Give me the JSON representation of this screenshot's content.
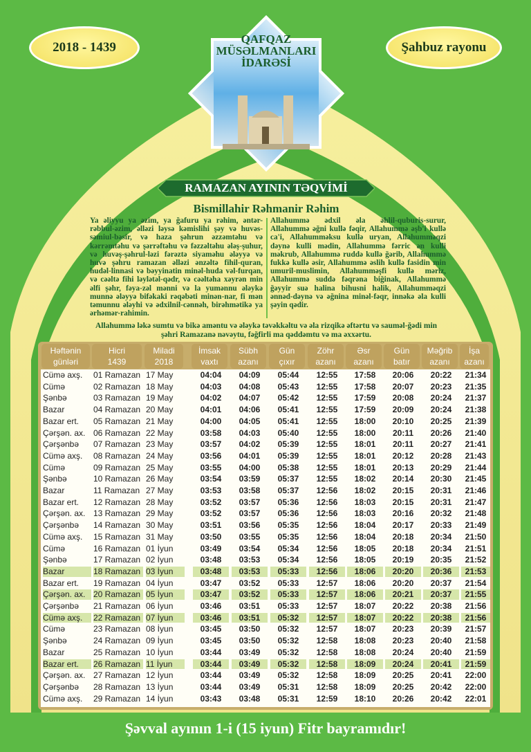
{
  "header": {
    "year_badge": "2018 - 1439",
    "region_badge": "Şahbuz rayonu",
    "logo_lines": [
      "QAFQAZ",
      "MÜSƏLMANLARI",
      "İDARƏSİ"
    ],
    "title": "RAMAZAN AYININ TƏQVİMİ",
    "bismillah": "Bismillahir Rəhmanir Rəhim"
  },
  "prayers": {
    "left": "Ya əliyyu ya əzim, ya ğafuru ya rəhim, əntər-rəbbul-əzim, əlləzi ləysə kəmislihi şəy və huvəs-səmiul-bəsir, və haza şəhrun əzzəmtəhu və kərrəmtəhu və şərrəftəhu və fəzzəltəhu ələş-şuhur, və huvəş-şəhrul-ləzi fərəztə siyaməhu ələyyə və huvə şəhru ramazan əlləzi ənzəltə fihil-quran, hudəl-linnasi və bəyyinatin minəl-huda vəl-furqan, və cəəltə fihi ləylətəl-qədr, və cəəltəha xəyrən min əlfi şəhr, fəya-zəl mənni və la yumənnu ələykə munnə ələyyə bifəkaki rəqəbəti minən-nar, fi mən təmunnu ələyhi və ədxilnil-cənnəh, birəhmətikə ya ərhəmər-rahimin.",
    "right": "Allahummə ədxil əla əhlil-quburis-surur, Allahummə əğni kullə fəqir, Allahummə əşb'i kullə ca'i, Allahumməksu kullə uryan, Allahumməqzi dəynə kulli mədin, Allahummə fərric ən kulli məkrub, Allahummə ruddə kullə ğərib, Allahummə fukkə kullə əsir, Allahummə əslih kullə fasidin min umuril-muslimin, Allahumməşfi kullə məriz, Allahummə suddə fəqrəna biğinak, Allahummə ğəyyir suə halina bihusni halik, Allahumməqzi ənnəd-dəynə və əğnina minəl-fəqr, innəkə əla kulli şəyin qədir.",
    "bottom": "Allahummə ləkə sumtu və bikə aməntu və ələykə təvəkkəltu və əla rizqikə əftərtu və sauməl-ğədi min şəhri Ramazanə nəvəytu, fəğfirli ma qəddəmtu və ma əxxərtu."
  },
  "table": {
    "headers": [
      [
        "Həftənin",
        "günləri"
      ],
      [
        "Hicri",
        "1439"
      ],
      [
        "Miladi",
        "2018"
      ],
      [
        "İmsak",
        "vaxtı"
      ],
      [
        "Sübh",
        "azanı"
      ],
      [
        "Gün",
        "çıxır"
      ],
      [
        "Zöhr",
        "azanı"
      ],
      [
        "Əsr",
        "azanı"
      ],
      [
        "Gün",
        "batır"
      ],
      [
        "Məğrib",
        "azanı"
      ],
      [
        "İşa",
        "azanı"
      ]
    ],
    "highlight_color": "#d6e6aa",
    "rows": [
      {
        "cells": [
          "Cümə axş.",
          "01 Ramazan",
          "17 May",
          "04:04",
          "04:09",
          "05:44",
          "12:55",
          "17:58",
          "20:06",
          "20:22",
          "21:34"
        ]
      },
      {
        "cells": [
          "Cümə",
          "02 Ramazan",
          "18 May",
          "04:03",
          "04:08",
          "05:43",
          "12:55",
          "17:58",
          "20:07",
          "20:23",
          "21:35"
        ]
      },
      {
        "cells": [
          "Şənbə",
          "03 Ramazan",
          "19 May",
          "04:02",
          "04:07",
          "05:42",
          "12:55",
          "17:59",
          "20:08",
          "20:24",
          "21:37"
        ]
      },
      {
        "cells": [
          "Bazar",
          "04 Ramazan",
          "20 May",
          "04:01",
          "04:06",
          "05:41",
          "12:55",
          "17:59",
          "20:09",
          "20:24",
          "21:38"
        ]
      },
      {
        "cells": [
          "Bazar ert.",
          "05 Ramazan",
          "21 May",
          "04:00",
          "04:05",
          "05:41",
          "12:55",
          "18:00",
          "20:10",
          "20:25",
          "21:39"
        ]
      },
      {
        "cells": [
          "Çərşən. ax.",
          "06 Ramazan",
          "22 May",
          "03:58",
          "04:03",
          "05:40",
          "12:55",
          "18:00",
          "20:11",
          "20:26",
          "21:40"
        ]
      },
      {
        "cells": [
          "Çərşənbə",
          "07 Ramazan",
          "23 May",
          "03:57",
          "04:02",
          "05:39",
          "12:55",
          "18:01",
          "20:11",
          "20:27",
          "21:41"
        ]
      },
      {
        "cells": [
          "Cümə axş.",
          "08 Ramazan",
          "24 May",
          "03:56",
          "04:01",
          "05:39",
          "12:55",
          "18:01",
          "20:12",
          "20:28",
          "21:43"
        ]
      },
      {
        "cells": [
          "Cümə",
          "09 Ramazan",
          "25 May",
          "03:55",
          "04:00",
          "05:38",
          "12:55",
          "18:01",
          "20:13",
          "20:29",
          "21:44"
        ]
      },
      {
        "cells": [
          "Şənbə",
          "10 Ramazan",
          "26 May",
          "03:54",
          "03:59",
          "05:37",
          "12:55",
          "18:02",
          "20:14",
          "20:30",
          "21:45"
        ]
      },
      {
        "cells": [
          "Bazar",
          "11 Ramazan",
          "27 May",
          "03:53",
          "03:58",
          "05:37",
          "12:56",
          "18:02",
          "20:15",
          "20:31",
          "21:46"
        ]
      },
      {
        "cells": [
          "Bazar ert.",
          "12 Ramazan",
          "28 May",
          "03:52",
          "03:57",
          "05:36",
          "12:56",
          "18:03",
          "20:15",
          "20:31",
          "21:47"
        ]
      },
      {
        "cells": [
          "Çərşən. ax.",
          "13 Ramazan",
          "29 May",
          "03:52",
          "03:57",
          "05:36",
          "12:56",
          "18:03",
          "20:16",
          "20:32",
          "21:48"
        ]
      },
      {
        "cells": [
          "Çərşənbə",
          "14 Ramazan",
          "30 May",
          "03:51",
          "03:56",
          "05:35",
          "12:56",
          "18:04",
          "20:17",
          "20:33",
          "21:49"
        ]
      },
      {
        "cells": [
          "Cümə axş.",
          "15 Ramazan",
          "31 May",
          "03:50",
          "03:55",
          "05:35",
          "12:56",
          "18:04",
          "20:18",
          "20:34",
          "21:50"
        ]
      },
      {
        "cells": [
          "Cümə",
          "16 Ramazan",
          "01 İyun",
          "03:49",
          "03:54",
          "05:34",
          "12:56",
          "18:05",
          "20:18",
          "20:34",
          "21:51"
        ]
      },
      {
        "cells": [
          "Şənbə",
          "17 Ramazan",
          "02 İyun",
          "03:48",
          "03:53",
          "05:34",
          "12:56",
          "18:05",
          "20:19",
          "20:35",
          "21:52"
        ]
      },
      {
        "cells": [
          "Bazar",
          "18 Ramazan",
          "03 İyun",
          "03:48",
          "03:53",
          "05:33",
          "12:56",
          "18:06",
          "20:20",
          "20:36",
          "21:53"
        ],
        "highlight": true
      },
      {
        "cells": [
          "Bazar ert.",
          "19 Ramazan",
          "04 İyun",
          "03:47",
          "03:52",
          "05:33",
          "12:57",
          "18:06",
          "20:20",
          "20:37",
          "21:54"
        ]
      },
      {
        "cells": [
          "Çərşən. ax.",
          "20 Ramazan",
          "05 İyun",
          "03:47",
          "03:52",
          "05:33",
          "12:57",
          "18:06",
          "20:21",
          "20:37",
          "21:55"
        ],
        "highlight": true
      },
      {
        "cells": [
          "Çərşənbə",
          "21 Ramazan",
          "06 İyun",
          "03:46",
          "03:51",
          "05:33",
          "12:57",
          "18:07",
          "20:22",
          "20:38",
          "21:56"
        ]
      },
      {
        "cells": [
          "Cümə axş.",
          "22 Ramazan",
          "07 İyun",
          "03:46",
          "03:51",
          "05:32",
          "12:57",
          "18:07",
          "20:22",
          "20:38",
          "21:56"
        ],
        "highlight": true
      },
      {
        "cells": [
          "Cümə",
          "23 Ramazan",
          "08 İyun",
          "03:45",
          "03:50",
          "05:32",
          "12:57",
          "18:07",
          "20:23",
          "20:39",
          "21:57"
        ]
      },
      {
        "cells": [
          "Şənbə",
          "24 Ramazan",
          "09 İyun",
          "03:45",
          "03:50",
          "05:32",
          "12:58",
          "18:08",
          "20:23",
          "20:40",
          "21:58"
        ]
      },
      {
        "cells": [
          "Bazar",
          "25 Ramazan",
          "10 İyun",
          "03:44",
          "03:49",
          "05:32",
          "12:58",
          "18:08",
          "20:24",
          "20:40",
          "21:59"
        ]
      },
      {
        "cells": [
          "Bazar ert.",
          "26 Ramazan",
          "11 İyun",
          "03:44",
          "03:49",
          "05:32",
          "12:58",
          "18:09",
          "20:24",
          "20:41",
          "21:59"
        ],
        "highlight": true
      },
      {
        "cells": [
          "Çərşən. ax.",
          "27 Ramazan",
          "12 İyun",
          "03:44",
          "03:49",
          "05:32",
          "12:58",
          "18:09",
          "20:25",
          "20:41",
          "22:00"
        ]
      },
      {
        "cells": [
          "Çərşənbə",
          "28 Ramazan",
          "13 İyun",
          "03:44",
          "03:49",
          "05:31",
          "12:58",
          "18:09",
          "20:25",
          "20:42",
          "22:00"
        ]
      },
      {
        "cells": [
          "Cümə axş.",
          "29 Ramazan",
          "14 İyun",
          "03:43",
          "03:48",
          "05:31",
          "12:59",
          "18:10",
          "20:26",
          "20:42",
          "22:01"
        ]
      }
    ]
  },
  "footer": "Şəvval ayının 1-i (15 iyun) Fitr bayramıdır!"
}
